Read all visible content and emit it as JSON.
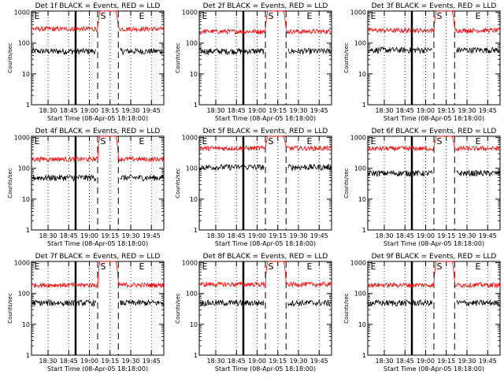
{
  "figure": {
    "xlabel": "Start Time (08-Apr-05 18:18:00)",
    "ylabel": "Counts/sec",
    "yticks": [
      {
        "value": 1,
        "label": "1"
      },
      {
        "value": 10,
        "label": "10"
      },
      {
        "value": 100,
        "label": "100"
      },
      {
        "value": 1000,
        "label": "1000"
      }
    ],
    "xticks": [
      {
        "value": 12,
        "label": "18:30"
      },
      {
        "value": 27,
        "label": "18:45"
      },
      {
        "value": 42,
        "label": "19:00"
      },
      {
        "value": 57,
        "label": "19:15"
      },
      {
        "value": 72,
        "label": "19:30"
      },
      {
        "value": 87,
        "label": "19:45"
      }
    ],
    "xlim": [
      0,
      96
    ],
    "ylim": [
      1,
      1100
    ],
    "yscale": "log",
    "colors": {
      "events": "#000000",
      "lld": "#ff0000"
    },
    "markers": {
      "pre": "E",
      "source": "S",
      "post": "E"
    },
    "vlines": {
      "solid": 32,
      "dashed": [
        48,
        63
      ],
      "dotted": [
        12,
        27,
        42,
        57,
        72,
        87
      ]
    }
  },
  "chart_data": [
    {
      "type": "line",
      "title": "Det 1f BLACK = Events, RED = LLD",
      "events_level": 55,
      "lld_level": 290,
      "lld_peak": 1000
    },
    {
      "type": "line",
      "title": "Det 2f BLACK = Events, RED = LLD",
      "events_level": 55,
      "lld_level": 240,
      "lld_peak": 1000
    },
    {
      "type": "line",
      "title": "Det 3f BLACK = Events, RED = LLD",
      "events_level": 60,
      "lld_level": 260,
      "lld_peak": 1000
    },
    {
      "type": "line",
      "title": "Det 4f BLACK = Events, RED = LLD",
      "events_level": 50,
      "lld_level": 200,
      "lld_peak": 1000
    },
    {
      "type": "line",
      "title": "Det 5f BLACK = Events, RED = LLD",
      "events_level": 110,
      "lld_level": 450,
      "lld_peak": 1000
    },
    {
      "type": "line",
      "title": "Det 6f BLACK = Events, RED = LLD",
      "events_level": 70,
      "lld_level": 440,
      "lld_peak": 1000
    },
    {
      "type": "line",
      "title": "Det 7f BLACK = Events, RED = LLD",
      "events_level": 50,
      "lld_level": 190,
      "lld_peak": 1000
    },
    {
      "type": "line",
      "title": "Det 8f BLACK = Events, RED = LLD",
      "events_level": 50,
      "lld_level": 200,
      "lld_peak": 1000
    },
    {
      "type": "line",
      "title": "Det 9f BLACK = Events, RED = LLD",
      "events_level": 50,
      "lld_level": 190,
      "lld_peak": 1000
    }
  ]
}
